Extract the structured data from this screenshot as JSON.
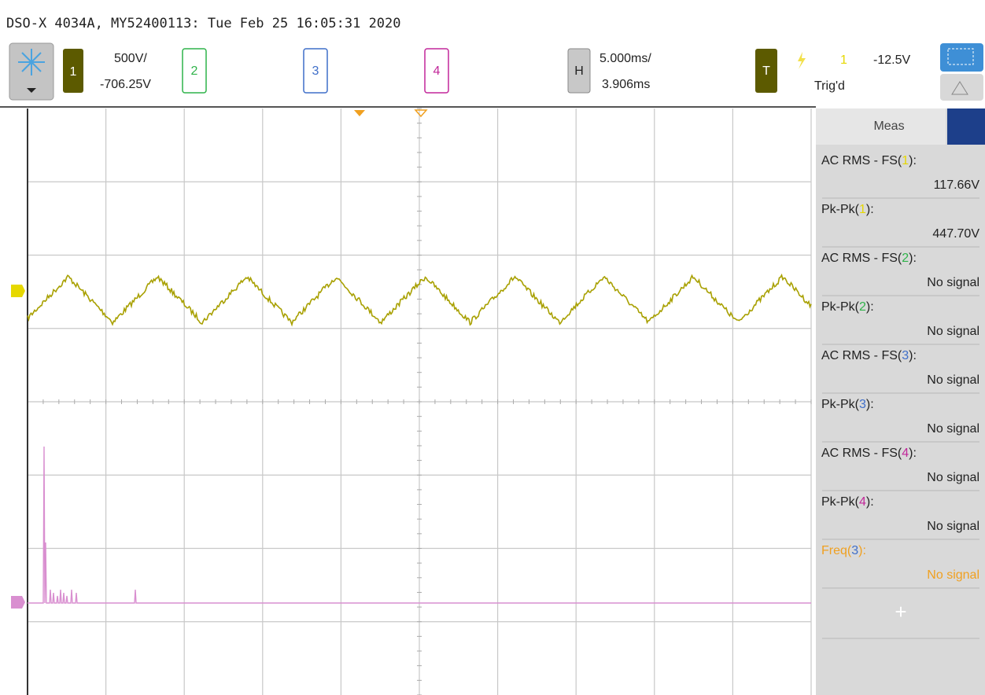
{
  "header": {
    "title": "DSO-X 4034A, MY52400113: Tue Feb 25 16:05:31 2020"
  },
  "toolbar": {
    "channel1": {
      "label": "1",
      "scale": "500V/",
      "offset": "-706.25V"
    },
    "channel2": {
      "label": "2"
    },
    "channel3": {
      "label": "3"
    },
    "channel4": {
      "label": "4"
    },
    "horizontal": {
      "label": "H",
      "scale": "5.000ms/",
      "delay": "3.906ms"
    },
    "trigger": {
      "label": "T",
      "source": "1",
      "level": "-12.5V",
      "status": "Trig'd"
    }
  },
  "meas_panel": {
    "title": "Meas",
    "items": [
      {
        "prefix": "AC RMS - FS(",
        "channel": "1",
        "suffix": "):",
        "value": "117.66V",
        "color": "#e6d800"
      },
      {
        "prefix": "Pk-Pk(",
        "channel": "1",
        "suffix": "):",
        "value": "447.70V",
        "color": "#e6d800"
      },
      {
        "prefix": "AC RMS - FS(",
        "channel": "2",
        "suffix": "):",
        "value": "No signal",
        "color": "#2fb34a"
      },
      {
        "prefix": "Pk-Pk(",
        "channel": "2",
        "suffix": "):",
        "value": "No signal",
        "color": "#2fb34a"
      },
      {
        "prefix": "AC RMS - FS(",
        "channel": "3",
        "suffix": "):",
        "value": "No signal",
        "color": "#3f6fc9"
      },
      {
        "prefix": "Pk-Pk(",
        "channel": "3",
        "suffix": "):",
        "value": "No signal",
        "color": "#3f6fc9"
      },
      {
        "prefix": "AC RMS - FS(",
        "channel": "4",
        "suffix": "):",
        "value": "No signal",
        "color": "#c2279a"
      },
      {
        "prefix": "Pk-Pk(",
        "channel": "4",
        "suffix": "):",
        "value": "No signal",
        "color": "#c2279a"
      },
      {
        "prefix": "Freq(",
        "channel": "3",
        "suffix": "):",
        "value": "No signal",
        "color": "#3f6fc9",
        "text_color": "#f0a020"
      }
    ],
    "add_button": "+"
  }
}
